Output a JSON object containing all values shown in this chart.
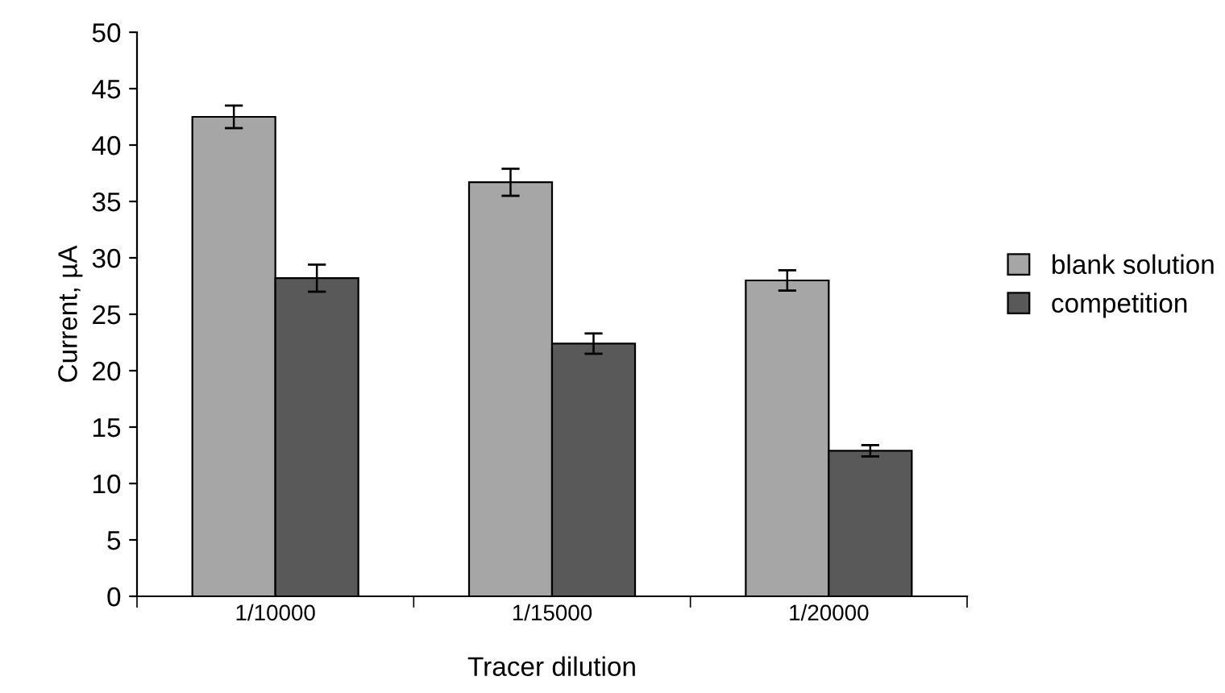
{
  "chart_data": {
    "type": "bar",
    "xlabel": "Tracer dilution",
    "ylabel": "Current, µA",
    "categories": [
      "1/10000",
      "1/15000",
      "1/20000"
    ],
    "series": [
      {
        "name": "blank solution",
        "color": "#a6a6a6",
        "values": [
          42.5,
          36.7,
          28
        ],
        "errors": [
          1,
          1.2,
          0.9
        ]
      },
      {
        "name": "competition",
        "color": "#595959",
        "values": [
          28.2,
          22.4,
          12.9
        ],
        "errors": [
          1.2,
          0.9,
          0.5
        ]
      }
    ],
    "ylim": [
      0,
      50
    ],
    "yticks": [
      0,
      5,
      10,
      15,
      20,
      25,
      30,
      35,
      40,
      45,
      50
    ],
    "grid": false,
    "legend": "right"
  }
}
